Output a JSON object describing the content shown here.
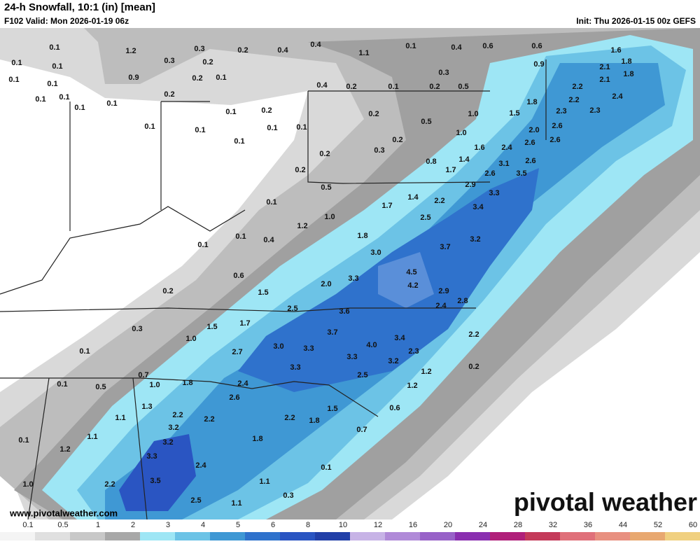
{
  "header": {
    "title": "24-h Snowfall, 10:1 (in) [mean]",
    "valid": "F102 Valid: Mon 2026-01-19 06z",
    "init": "Init: Thu 2026-01-15 00z GEFS"
  },
  "map_labels": [
    "0.1",
    "1.2",
    "0.3",
    "0.2",
    "0.4",
    "0.4",
    "1.1",
    "0.1",
    "0.4",
    "0.6",
    "0.6",
    "1.6",
    "0.1",
    "0.1",
    "0.3",
    "0.2",
    "0.9",
    "2.1",
    "1.8",
    "0.1",
    "0.1",
    "0.9",
    "0.2",
    "0.1",
    "0.3",
    "2.1",
    "1.8",
    "0.1",
    "0.2",
    "0.4",
    "0.2",
    "0.1",
    "0.2",
    "0.5",
    "2.2",
    "2.4",
    "0.1",
    "0.1",
    "0.1",
    "1.8",
    "2.2",
    "0.1",
    "0.2",
    "0.2",
    "1.0",
    "1.5",
    "2.3",
    "2.3",
    "0.1",
    "0.1",
    "0.1",
    "0.1",
    "0.5",
    "1.0",
    "2.0",
    "2.6",
    "0.1",
    "0.2",
    "1.6",
    "2.4",
    "2.6",
    "2.6",
    "0.2",
    "0.3",
    "0.8",
    "1.4",
    "3.1",
    "2.6",
    "0.2",
    "1.7",
    "2.6",
    "3.5",
    "0.5",
    "2.9",
    "3.3",
    "1.4",
    "2.2",
    "0.1",
    "1.7",
    "3.4",
    "1.0",
    "2.5",
    "1.2",
    "1.8",
    "0.1",
    "0.4",
    "3.2",
    "0.1",
    "3.7",
    "3.0",
    "4.5",
    "0.6",
    "3.3",
    "4.2",
    "2.0",
    "1.5",
    "0.2",
    "2.9",
    "2.5",
    "3.6",
    "2.4",
    "2.8",
    "1.7",
    "1.5",
    "0.3",
    "3.7",
    "2.2",
    "3.4",
    "1.0",
    "3.0",
    "3.3",
    "4.0",
    "0.1",
    "2.7",
    "2.3",
    "3.3",
    "3.2",
    "0.2",
    "3.3",
    "1.2",
    "2.5",
    "0.7",
    "0.1",
    "0.5",
    "1.0",
    "1.8",
    "2.4",
    "1.2",
    "2.6",
    "1.3",
    "1.5",
    "0.6",
    "2.2",
    "1.1",
    "2.2",
    "2.2",
    "1.8",
    "3.2",
    "0.7",
    "1.1",
    "0.1",
    "3.2",
    "1.8",
    "1.2",
    "3.3",
    "2.4",
    "0.1",
    "1.1",
    "3.5",
    "1.0",
    "2.2",
    "0.3",
    "2.5",
    "1.1"
  ],
  "legend": {
    "ticks": [
      "0.1",
      "0.5",
      "1",
      "2",
      "3",
      "4",
      "5",
      "6",
      "8",
      "10",
      "12",
      "16",
      "20",
      "24",
      "28",
      "32",
      "36",
      "44",
      "52",
      "60"
    ]
  },
  "footer": {
    "url": "www.pivotalweather.com",
    "brand": "pivotal weather"
  }
}
